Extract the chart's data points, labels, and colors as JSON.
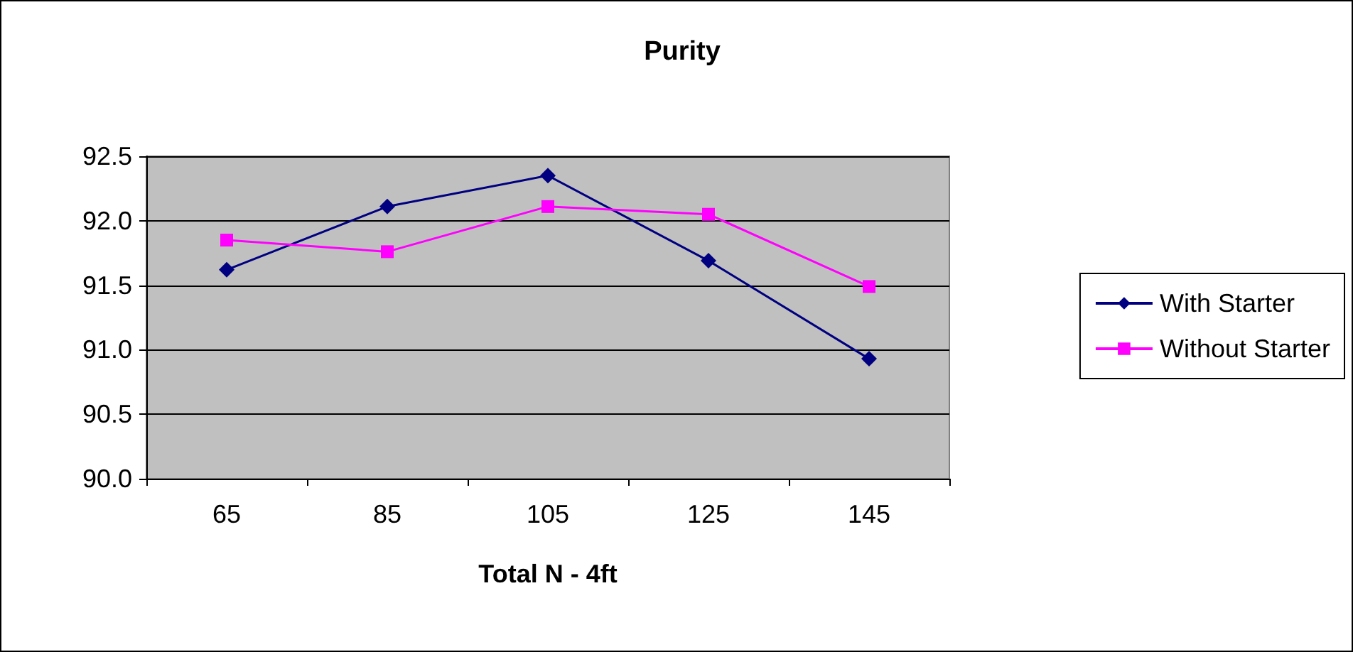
{
  "chart_data": {
    "type": "line",
    "title": "Purity",
    "xlabel": "Total N - 4ft",
    "categories": [
      "65",
      "85",
      "105",
      "125",
      "145"
    ],
    "series": [
      {
        "name": "With Starter",
        "color": "#000080",
        "marker": "diamond",
        "values": [
          91.62,
          92.11,
          92.35,
          91.69,
          90.93
        ]
      },
      {
        "name": "Without Starter",
        "color": "#ff00ff",
        "marker": "square",
        "values": [
          91.85,
          91.76,
          92.11,
          92.05,
          91.49
        ]
      }
    ],
    "ylim": [
      90,
      92.5
    ],
    "yticks": [
      {
        "value": 90,
        "label": "90.0"
      },
      90.5,
      {
        "value": 91,
        "label": "91.0"
      },
      91.5,
      {
        "value": 92,
        "label": "92.0"
      },
      92.5
    ],
    "grid": "y",
    "legend": "right"
  }
}
